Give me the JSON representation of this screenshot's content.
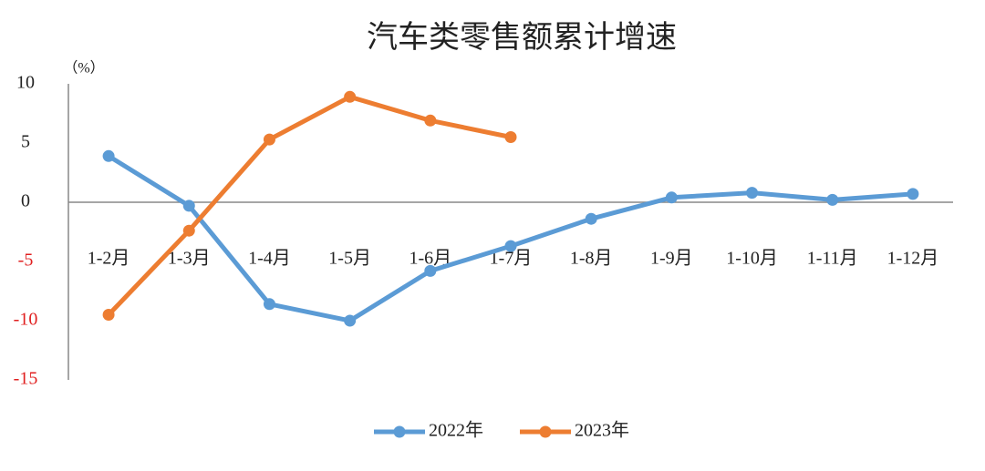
{
  "chart_data": {
    "type": "line",
    "title": "汽车类零售额累计增速",
    "y_unit": "（%）",
    "categories": [
      "1-2月",
      "1-3月",
      "1-4月",
      "1-5月",
      "1-6月",
      "1-7月",
      "1-8月",
      "1-9月",
      "1-10月",
      "1-11月",
      "1-12月"
    ],
    "series": [
      {
        "name": "2022年",
        "color": "#5b9bd5",
        "values": [
          3.9,
          -0.3,
          -8.6,
          -10.0,
          -5.8,
          -3.7,
          -1.4,
          0.4,
          0.8,
          0.2,
          0.7
        ]
      },
      {
        "name": "2023年",
        "color": "#ed7d31",
        "values": [
          -9.5,
          -2.4,
          5.3,
          8.9,
          6.9,
          5.5,
          null,
          null,
          null,
          null,
          null
        ]
      }
    ],
    "ylim": [
      -15,
      10
    ],
    "yticks": [
      10,
      5,
      0,
      -5,
      -10,
      -15
    ],
    "grid": false,
    "negative_tick_color": "#e02020",
    "legend": "bottom"
  }
}
